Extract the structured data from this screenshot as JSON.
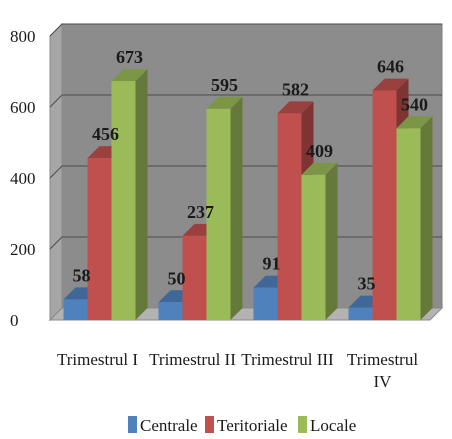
{
  "chart_data": {
    "type": "bar",
    "categories": [
      [
        "Trimestrul I"
      ],
      [
        "Trimestrul II"
      ],
      [
        "Trimestrul III"
      ],
      [
        "Trimestrul",
        "IV"
      ]
    ],
    "series": [
      {
        "name": "Centrale",
        "values": [
          58,
          50,
          91,
          35
        ],
        "color": "#4F81BD"
      },
      {
        "name": "Teritoriale",
        "values": [
          456,
          237,
          582,
          646
        ],
        "color": "#C0504D"
      },
      {
        "name": "Locale",
        "values": [
          673,
          595,
          409,
          540
        ],
        "color": "#9BBB59"
      }
    ],
    "ylim": [
      0,
      800
    ],
    "yticks": [
      0,
      200,
      400,
      600,
      800
    ],
    "grid": true,
    "legend_position": "bottom",
    "three_d": true
  }
}
